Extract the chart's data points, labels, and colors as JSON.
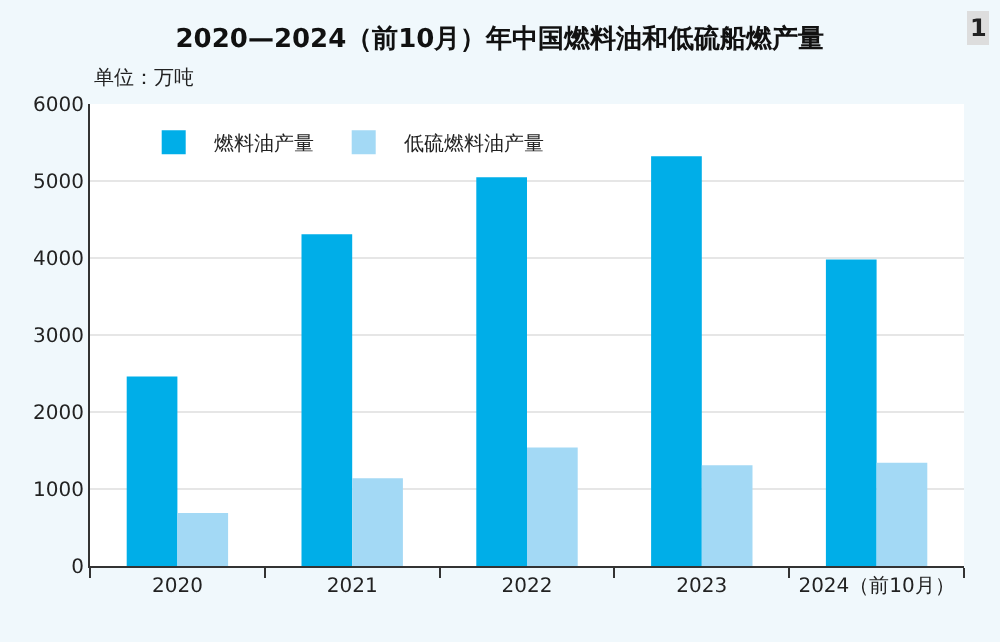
{
  "chart_data": {
    "type": "bar",
    "title": "2020—2024（前10月）年中国燃料油和低硫船燃产量",
    "ylabel": "单位：万吨",
    "annotations": [
      "1"
    ],
    "categories": [
      "2020",
      "2021",
      "2022",
      "2023",
      "2024（前10月）"
    ],
    "series": [
      {
        "name": "燃料油产量",
        "color": "#00aee8",
        "values": [
          2460,
          4310,
          5050,
          5320,
          3980
        ]
      },
      {
        "name": "低硫燃料油产量",
        "color": "#a3d9f5",
        "values": [
          690,
          1140,
          1540,
          1310,
          1340
        ]
      }
    ],
    "ylim": [
      0,
      6000
    ],
    "yticks": [
      0,
      1000,
      2000,
      3000,
      4000,
      5000,
      6000
    ],
    "grid": "y",
    "legend": "top left"
  }
}
